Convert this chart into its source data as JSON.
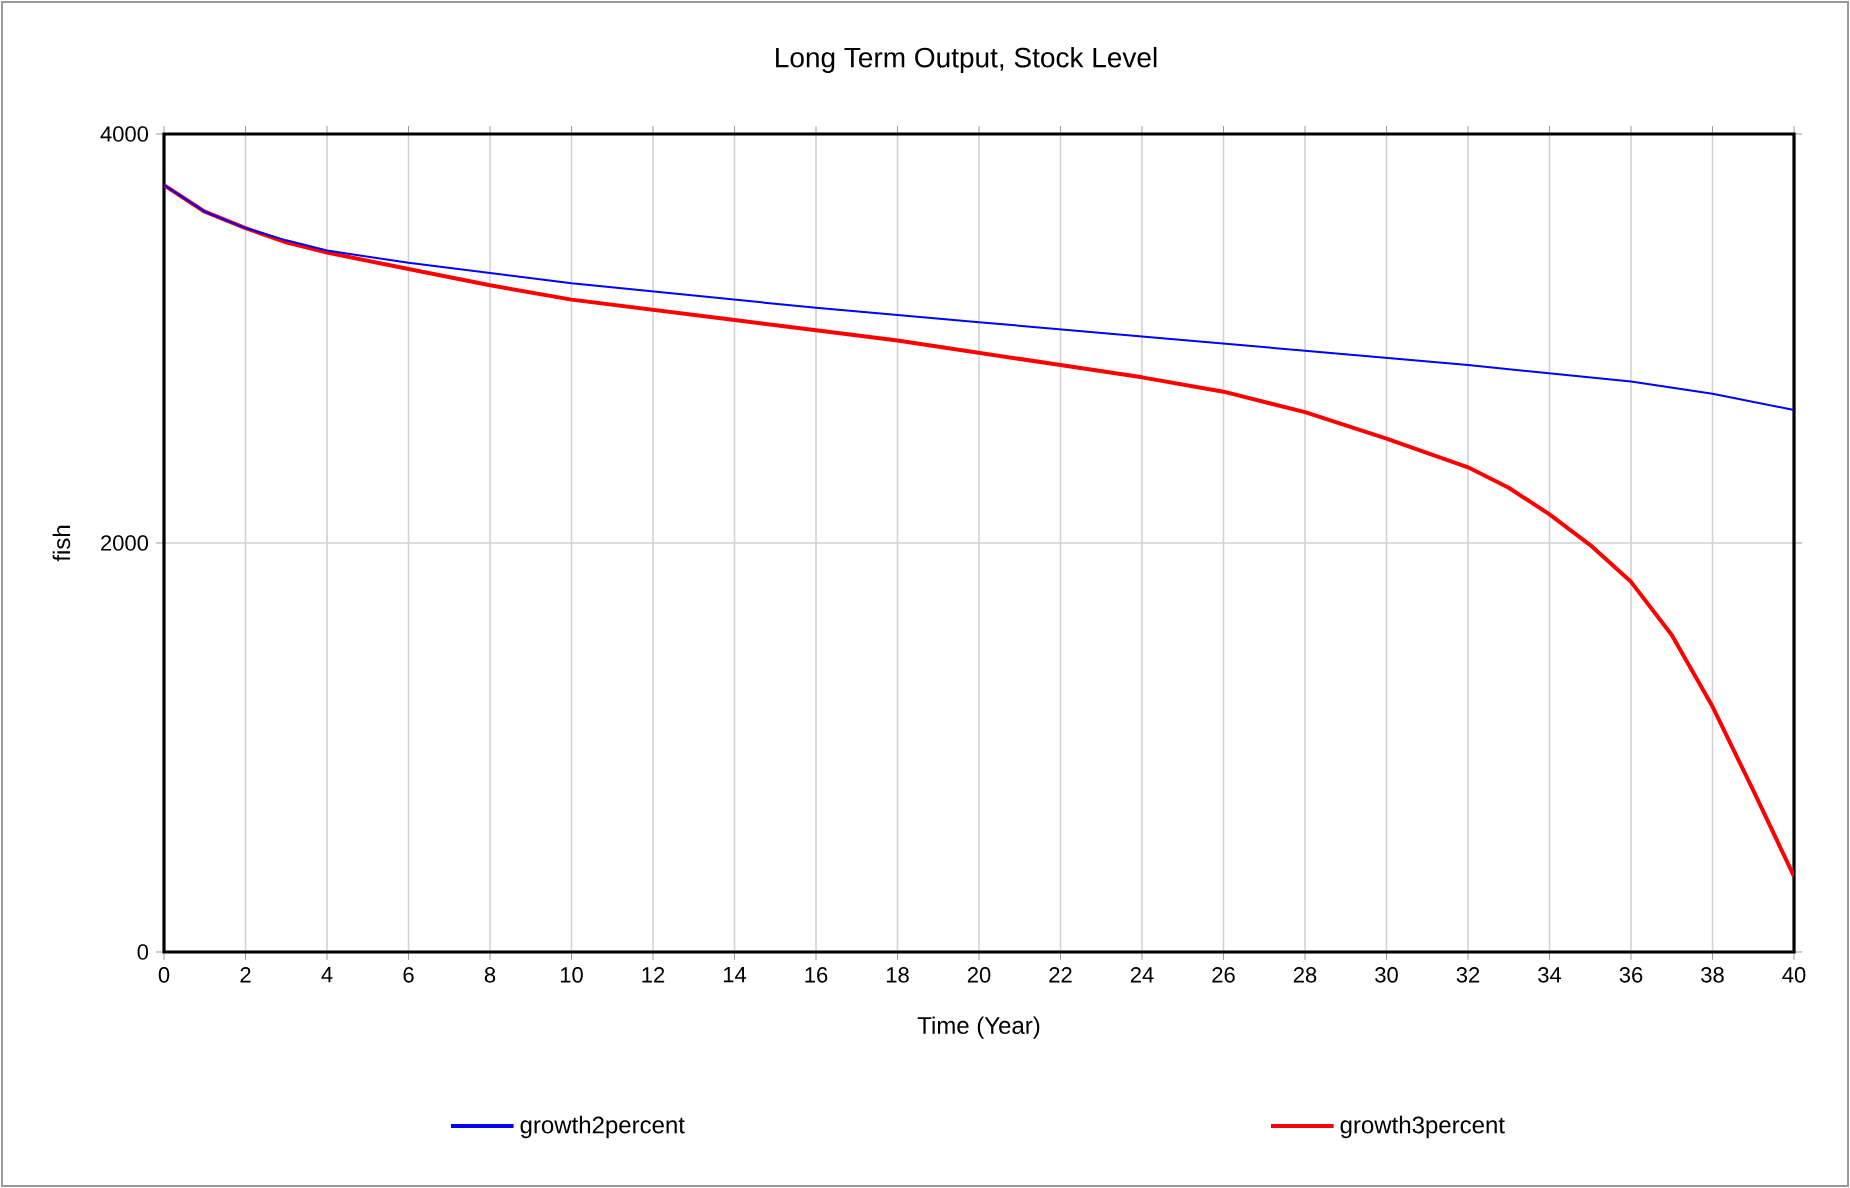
{
  "chart_data": {
    "type": "line",
    "title": "Long Term Output, Stock Level",
    "xlabel": "Time (Year)",
    "ylabel": "fish",
    "xlim": [
      0,
      40
    ],
    "xticks": [
      0,
      2,
      4,
      6,
      8,
      10,
      12,
      14,
      16,
      18,
      20,
      22,
      24,
      26,
      28,
      30,
      32,
      34,
      36,
      38,
      40
    ],
    "ylim": [
      0,
      4000
    ],
    "yticks": [
      0,
      2000,
      4000
    ],
    "grid": true,
    "legend": "bottom",
    "series": [
      {
        "name": "growth2percent",
        "color": "#0000ff",
        "x": [
          0,
          1,
          2,
          3,
          4,
          6,
          10,
          16,
          20,
          24,
          28,
          32,
          36,
          38,
          40
        ],
        "values": [
          3750,
          3620,
          3540,
          3480,
          3430,
          3370,
          3270,
          3150,
          3080,
          3010,
          2940,
          2870,
          2790,
          2730,
          2650
        ]
      },
      {
        "name": "growth3percent",
        "color": "#ff0000",
        "x": [
          0,
          1,
          2,
          3,
          4,
          6,
          8,
          10,
          12,
          14,
          16,
          18,
          20,
          22,
          24,
          26,
          28,
          30,
          32,
          33,
          34,
          35,
          36,
          37,
          38,
          39,
          40
        ],
        "values": [
          3750,
          3620,
          3540,
          3470,
          3420,
          3340,
          3260,
          3190,
          3140,
          3090,
          3040,
          2990,
          2930,
          2870,
          2810,
          2740,
          2640,
          2510,
          2370,
          2270,
          2140,
          1990,
          1810,
          1550,
          1200,
          790,
          370
        ]
      }
    ]
  }
}
